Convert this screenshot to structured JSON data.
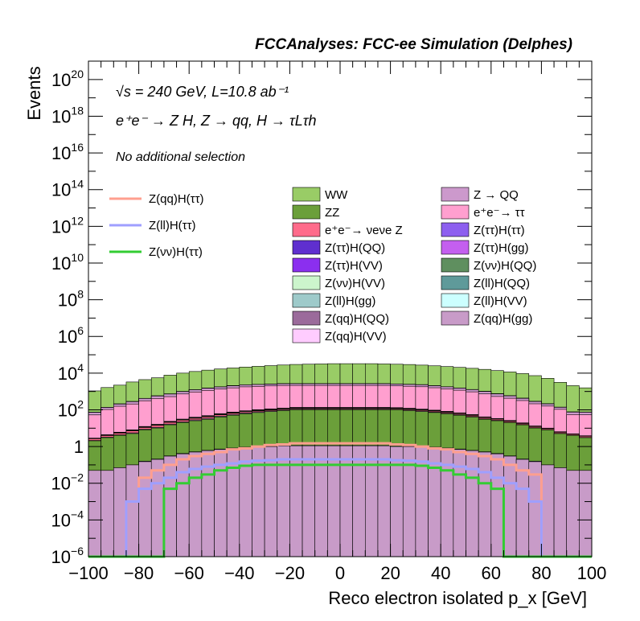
{
  "header": "FCCAnalyses: FCC-ee Simulation (Delphes)",
  "info_lines": [
    "√s = 240 GeV, L=10.8 ab⁻¹",
    "e⁺e⁻ → Z H, Z → qq, H → τLτh",
    "No additional selection"
  ],
  "chart_data": {
    "type": "histogram",
    "xlabel": "Reco electron isolated p_x [GeV]",
    "ylabel": "Events",
    "xlim": [
      -100,
      100
    ],
    "ylim": [
      1e-06,
      1e+21
    ],
    "log_y": true,
    "x_ticks": [
      -100,
      -80,
      -60,
      -40,
      -20,
      0,
      20,
      40,
      60,
      80,
      100
    ],
    "x_tick_labels": [
      "−100",
      "−80",
      "−60",
      "−40",
      "−20",
      "0",
      "20",
      "40",
      "60",
      "80",
      "100"
    ],
    "y_tick_exponents": [
      -6,
      -4,
      -2,
      0,
      2,
      4,
      6,
      8,
      10,
      12,
      14,
      16,
      18,
      20
    ],
    "bin_edges": [
      -100,
      -95,
      -90,
      -85,
      -80,
      -75,
      -70,
      -65,
      -60,
      -55,
      -50,
      -45,
      -40,
      -35,
      -30,
      -25,
      -20,
      -15,
      -10,
      -5,
      0,
      5,
      10,
      15,
      20,
      25,
      30,
      35,
      40,
      45,
      50,
      55,
      60,
      65,
      70,
      75,
      80,
      85,
      90,
      95,
      100
    ],
    "stack_order_bottom_to_top": [
      "Z(qq)H(gg)",
      "Z(ll)H(gg)",
      "ZZ",
      "Z(qq)H(QQ)",
      "e⁺e⁻→ νeνe Z",
      "Z(ll)H(VV)",
      "Z(ll)H(QQ)",
      "Z(νν)H(QQ)",
      "Z(ττ)H(gg)",
      "Z(ττ)H(ττ)",
      "e⁺e⁻→ ττ",
      "Z → QQ",
      "Z(qq)H(VV)",
      "Z(νν)H(VV)",
      "Z(ττ)H(VV)",
      "Z(ττ)H(QQ)",
      "WW"
    ],
    "stacked_series": [
      {
        "name": "Z(qq)H(gg)",
        "color": "#c89bc8",
        "values": [
          0.05,
          0.05,
          0.07,
          0.1,
          0.15,
          0.2,
          0.3,
          0.4,
          0.5,
          0.6,
          0.7,
          0.8,
          0.9,
          1.0,
          1.0,
          1.1,
          1.1,
          1.1,
          1.1,
          1.1,
          1.1,
          1.1,
          1.1,
          1.1,
          1.0,
          1.0,
          1.0,
          0.9,
          0.8,
          0.7,
          0.6,
          0.5,
          0.4,
          0.3,
          0.2,
          0.15,
          0.1,
          0.07,
          0.05,
          0.05
        ]
      },
      {
        "name": "Z(ll)H(gg)",
        "color": "#9ecaca",
        "values": [
          0,
          0,
          0,
          0,
          0.01,
          0.01,
          0.01,
          0.02,
          0.02,
          0.02,
          0.03,
          0.03,
          0.03,
          0.03,
          0.03,
          0.03,
          0.03,
          0.03,
          0.03,
          0.03,
          0.03,
          0.03,
          0.03,
          0.03,
          0.03,
          0.03,
          0.03,
          0.03,
          0.03,
          0.03,
          0.02,
          0.02,
          0.02,
          0.01,
          0.01,
          0.01,
          0,
          0,
          0,
          0
        ]
      },
      {
        "name": "ZZ",
        "color": "#6b9f3a",
        "values": [
          2,
          3,
          4,
          5,
          8,
          10,
          15,
          20,
          25,
          30,
          40,
          50,
          60,
          70,
          80,
          90,
          100,
          100,
          100,
          100,
          100,
          100,
          100,
          100,
          100,
          90,
          80,
          70,
          60,
          50,
          40,
          30,
          25,
          20,
          15,
          10,
          8,
          5,
          4,
          3
        ]
      },
      {
        "name": "Z(qq)H(QQ)",
        "color": "#9b6b9b",
        "values": [
          0.1,
          0.2,
          0.3,
          0.5,
          0.7,
          1.0,
          1.5,
          2,
          3,
          4,
          5,
          6,
          7,
          8,
          8,
          9,
          9,
          9,
          9,
          9,
          9,
          9,
          9,
          9,
          8,
          8,
          7,
          6,
          5,
          4,
          3,
          2,
          1.5,
          1.0,
          0.7,
          0.5,
          0.3,
          0.2,
          0.1,
          0.1
        ]
      },
      {
        "name": "e⁺e⁻→ νeνe Z",
        "color": "#ff6b8b",
        "values": [
          0.5,
          0.7,
          1,
          1.5,
          2,
          3,
          4,
          5,
          6,
          7,
          8,
          9,
          10,
          10,
          10,
          11,
          11,
          11,
          11,
          11,
          11,
          11,
          11,
          11,
          10,
          10,
          10,
          9,
          8,
          7,
          6,
          5,
          4,
          3,
          2,
          1.5,
          1,
          0.7,
          0.5,
          0.5
        ]
      },
      {
        "name": "Z(ll)H(VV)",
        "color": "#ccffff",
        "values": [
          0.01,
          0.02,
          0.03,
          0.04,
          0.05,
          0.06,
          0.08,
          0.1,
          0.12,
          0.14,
          0.16,
          0.18,
          0.2,
          0.2,
          0.2,
          0.2,
          0.2,
          0.2,
          0.2,
          0.2,
          0.2,
          0.2,
          0.2,
          0.2,
          0.2,
          0.2,
          0.2,
          0.18,
          0.16,
          0.14,
          0.12,
          0.1,
          0.08,
          0.06,
          0.05,
          0.04,
          0.03,
          0.02,
          0.01,
          0.01
        ]
      },
      {
        "name": "Z(ll)H(QQ)",
        "color": "#5f9a9a",
        "values": [
          0.02,
          0.03,
          0.05,
          0.07,
          0.1,
          0.15,
          0.2,
          0.25,
          0.3,
          0.35,
          0.4,
          0.45,
          0.5,
          0.5,
          0.5,
          0.5,
          0.5,
          0.5,
          0.5,
          0.5,
          0.5,
          0.5,
          0.5,
          0.5,
          0.5,
          0.5,
          0.5,
          0.45,
          0.4,
          0.35,
          0.3,
          0.25,
          0.2,
          0.15,
          0.1,
          0.07,
          0.05,
          0.03,
          0.02,
          0.02
        ]
      },
      {
        "name": "Z(νν)H(QQ)",
        "color": "#5f8f5f",
        "values": [
          0.1,
          0.2,
          0.3,
          0.5,
          0.8,
          1,
          1.5,
          2,
          3,
          4,
          5,
          6,
          7,
          8,
          8,
          9,
          9,
          9,
          9,
          9,
          9,
          9,
          9,
          9,
          8,
          8,
          7,
          6,
          5,
          4,
          3,
          2,
          1.5,
          1,
          0.8,
          0.5,
          0.3,
          0.2,
          0.1,
          0.1
        ]
      },
      {
        "name": "Z(ττ)H(gg)",
        "color": "#c45fef",
        "values": [
          0.05,
          0.1,
          0.15,
          0.2,
          0.3,
          0.4,
          0.5,
          0.7,
          0.9,
          1.1,
          1.3,
          1.5,
          1.7,
          1.8,
          1.9,
          2,
          2,
          2,
          2,
          2,
          2,
          2,
          2,
          2,
          1.9,
          1.8,
          1.7,
          1.5,
          1.3,
          1.1,
          0.9,
          0.7,
          0.5,
          0.4,
          0.3,
          0.2,
          0.15,
          0.1,
          0.05,
          0.05
        ]
      },
      {
        "name": "Z(ττ)H(ττ)",
        "color": "#8d5fef",
        "values": [
          0.05,
          0.1,
          0.15,
          0.2,
          0.3,
          0.4,
          0.5,
          0.7,
          0.9,
          1.1,
          1.3,
          1.5,
          1.7,
          1.8,
          1.9,
          2,
          2,
          2,
          2,
          2,
          2,
          2,
          2,
          2,
          1.9,
          1.8,
          1.7,
          1.5,
          1.3,
          1.1,
          0.9,
          0.7,
          0.5,
          0.4,
          0.3,
          0.2,
          0.15,
          0.1,
          0.05,
          0.05
        ]
      },
      {
        "name": "e⁺e⁻→ ττ",
        "color": "#ff9fcf",
        "values": [
          50,
          100,
          150,
          200,
          300,
          400,
          500,
          700,
          900,
          1100,
          1300,
          1500,
          1700,
          1800,
          1900,
          2000,
          2000,
          2000,
          2000,
          2000,
          2000,
          2000,
          2000,
          2000,
          1900,
          1800,
          1700,
          1500,
          1300,
          1100,
          900,
          700,
          500,
          400,
          300,
          200,
          150,
          100,
          50,
          50
        ]
      },
      {
        "name": "Z → QQ",
        "color": "#cc99cc",
        "values": [
          20,
          30,
          50,
          70,
          100,
          150,
          200,
          250,
          300,
          350,
          400,
          450,
          500,
          500,
          500,
          500,
          500,
          500,
          500,
          500,
          500,
          500,
          500,
          500,
          500,
          500,
          500,
          450,
          400,
          350,
          300,
          250,
          200,
          150,
          100,
          70,
          50,
          30,
          20,
          20
        ]
      },
      {
        "name": "Z(qq)H(VV)",
        "color": "#ffccff",
        "values": [
          1,
          1.5,
          2,
          3,
          4,
          5,
          6,
          8,
          10,
          12,
          14,
          16,
          18,
          19,
          20,
          20,
          20,
          20,
          20,
          20,
          20,
          20,
          20,
          20,
          20,
          19,
          18,
          16,
          14,
          12,
          10,
          8,
          6,
          5,
          4,
          3,
          2,
          1.5,
          1,
          1
        ]
      },
      {
        "name": "Z(νν)H(VV)",
        "color": "#ccf5cc",
        "values": [
          0.5,
          0.7,
          1,
          1.5,
          2,
          3,
          4,
          5,
          6,
          7,
          8,
          9,
          10,
          10,
          10,
          10,
          10,
          10,
          10,
          10,
          10,
          10,
          10,
          10,
          10,
          10,
          10,
          9,
          8,
          7,
          6,
          5,
          4,
          3,
          2,
          1.5,
          1,
          0.7,
          0.5,
          0.5
        ]
      },
      {
        "name": "Z(ττ)H(VV)",
        "color": "#8b2fef",
        "values": [
          0.2,
          0.3,
          0.5,
          0.7,
          1,
          1.5,
          2,
          3,
          4,
          5,
          6,
          7,
          8,
          9,
          10,
          10,
          10,
          10,
          10,
          10,
          10,
          10,
          10,
          10,
          10,
          9,
          8,
          7,
          6,
          5,
          4,
          3,
          2,
          1.5,
          1,
          0.7,
          0.5,
          0.3,
          0.2,
          0.2
        ]
      },
      {
        "name": "Z(ττ)H(QQ)",
        "color": "#5f2fcf",
        "values": [
          0.2,
          0.3,
          0.5,
          0.7,
          1,
          1.5,
          2,
          3,
          4,
          5,
          6,
          7,
          8,
          9,
          10,
          10,
          10,
          10,
          10,
          10,
          10,
          10,
          10,
          10,
          10,
          9,
          8,
          7,
          6,
          5,
          4,
          3,
          2,
          1.5,
          1,
          0.7,
          0.5,
          0.3,
          0.2,
          0.2
        ]
      },
      {
        "name": "WW",
        "color": "#99cc66",
        "values": [
          1000,
          1500,
          2000,
          3000,
          4000,
          5000,
          7000,
          9000,
          11000,
          13000,
          15000,
          17000,
          19000,
          21000,
          23000,
          25000,
          27000,
          28000,
          29000,
          30000,
          30000,
          30000,
          30000,
          29000,
          28000,
          27000,
          25000,
          23000,
          21000,
          19000,
          17000,
          15000,
          13000,
          11000,
          9000,
          7000,
          5000,
          3000,
          2000,
          1500
        ]
      }
    ],
    "signal_series": [
      {
        "name": "Z(qq)H(ττ)",
        "color": "#ff9f8f",
        "values": [
          0,
          0,
          1e-06,
          0.001,
          0.02,
          0.05,
          0.1,
          0.2,
          0.3,
          0.4,
          0.5,
          0.7,
          0.8,
          1,
          1.2,
          1.3,
          1.5,
          1.5,
          1.5,
          1.5,
          1.5,
          1.5,
          1.5,
          1.5,
          1.3,
          1.2,
          1,
          0.8,
          0.7,
          0.5,
          0.4,
          0.3,
          0.2,
          0.1,
          0.05,
          0.03,
          1e-06,
          0,
          0,
          0
        ]
      },
      {
        "name": "Z(ll)H(ττ)",
        "color": "#9f9fff",
        "values": [
          0,
          0,
          0,
          0.001,
          0.005,
          0.01,
          0.02,
          0.04,
          0.06,
          0.08,
          0.1,
          0.12,
          0.15,
          0.17,
          0.18,
          0.2,
          0.2,
          0.2,
          0.2,
          0.2,
          0.2,
          0.2,
          0.2,
          0.2,
          0.18,
          0.17,
          0.15,
          0.12,
          0.1,
          0.08,
          0.06,
          0.04,
          0.02,
          0.01,
          0.005,
          0.001,
          0,
          0,
          0,
          0
        ]
      },
      {
        "name": "Z(νν)H(ττ)",
        "color": "#33cc33",
        "values": [
          0,
          0,
          0,
          0,
          0,
          1e-06,
          0.005,
          0.01,
          0.02,
          0.03,
          0.05,
          0.07,
          0.09,
          0.1,
          0.1,
          0.1,
          0.1,
          0.1,
          0.1,
          0.1,
          0.1,
          0.1,
          0.1,
          0.1,
          0.1,
          0.1,
          0.09,
          0.07,
          0.05,
          0.03,
          0.02,
          0.01,
          0.005,
          1e-06,
          0,
          0,
          0,
          0,
          0,
          0
        ]
      }
    ]
  },
  "legend": {
    "signal": [
      {
        "label": "Z(qq)H(ττ)",
        "color": "#ff9f8f"
      },
      {
        "label": "Z(ll)H(ττ)",
        "color": "#9f9fff"
      },
      {
        "label": "Z(νν)H(ττ)",
        "color": "#33cc33"
      }
    ],
    "background_col1": [
      {
        "label": "WW",
        "color": "#99cc66"
      },
      {
        "label": "ZZ",
        "color": "#6b9f3a"
      },
      {
        "label": "e⁺e⁻→ νeνe Z",
        "color": "#ff6b8b"
      },
      {
        "label": "Z(ττ)H(QQ)",
        "color": "#5f2fcf"
      },
      {
        "label": "Z(ττ)H(VV)",
        "color": "#8b2fef"
      },
      {
        "label": "Z(νν)H(VV)",
        "color": "#ccf5cc"
      },
      {
        "label": "Z(ll)H(gg)",
        "color": "#9ecaca"
      },
      {
        "label": "Z(qq)H(QQ)",
        "color": "#9b6b9b"
      },
      {
        "label": "Z(qq)H(VV)",
        "color": "#ffccff"
      }
    ],
    "background_col2": [
      {
        "label": "Z → QQ",
        "color": "#cc99cc"
      },
      {
        "label": "e⁺e⁻→ ττ",
        "color": "#ff9fcf"
      },
      {
        "label": "Z(ττ)H(ττ)",
        "color": "#8d5fef"
      },
      {
        "label": "Z(ττ)H(gg)",
        "color": "#c45fef"
      },
      {
        "label": "Z(νν)H(QQ)",
        "color": "#5f8f5f"
      },
      {
        "label": "Z(ll)H(QQ)",
        "color": "#5f9a9a"
      },
      {
        "label": "Z(ll)H(VV)",
        "color": "#ccffff"
      },
      {
        "label": "Z(qq)H(gg)",
        "color": "#c89bc8"
      }
    ]
  }
}
